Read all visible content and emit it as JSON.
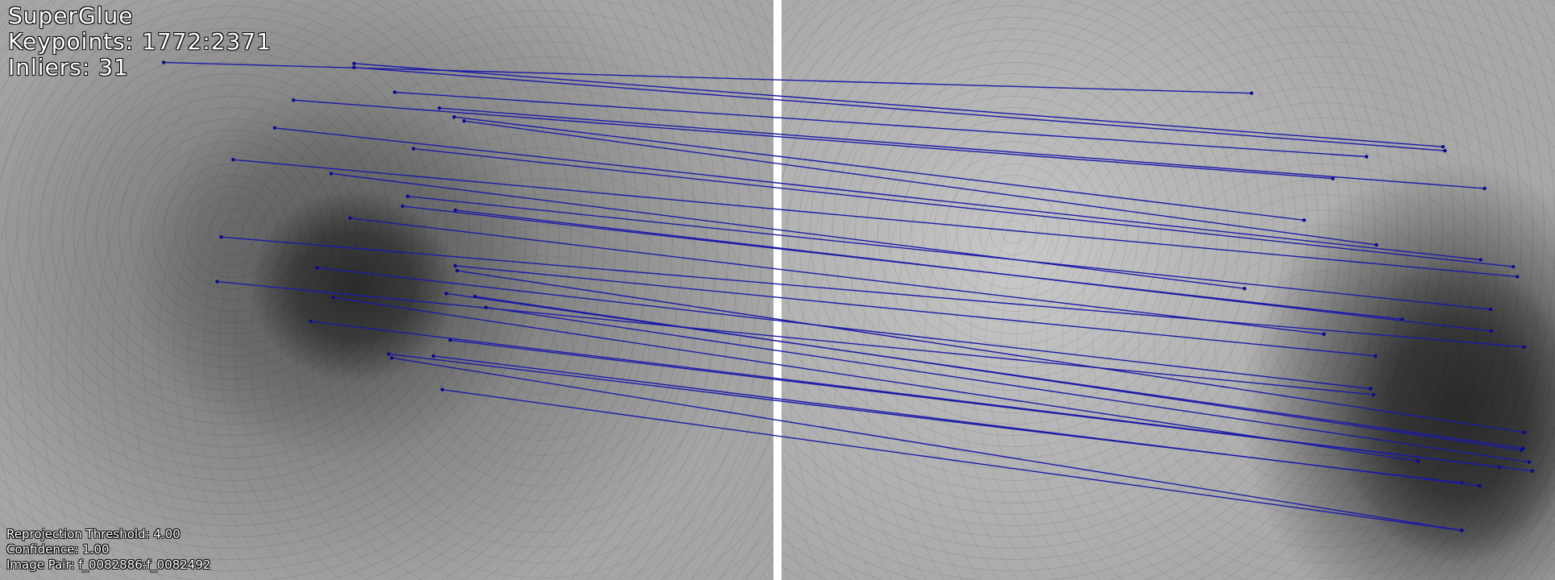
{
  "header": {
    "method": "SuperGlue",
    "keypoints": "Keypoints: 1772:2371",
    "inliers": "Inliers: 31"
  },
  "footer": {
    "threshold": "Reprojection Threshold: 4.00",
    "confidence": "Confidence: 1.00",
    "image_pair": "Image Pair: f_0082886:f_0082492"
  },
  "colors": {
    "match_line": "#1a1aa8",
    "keypoint": "#0a0a8c",
    "divider": "#ffffff"
  }
}
